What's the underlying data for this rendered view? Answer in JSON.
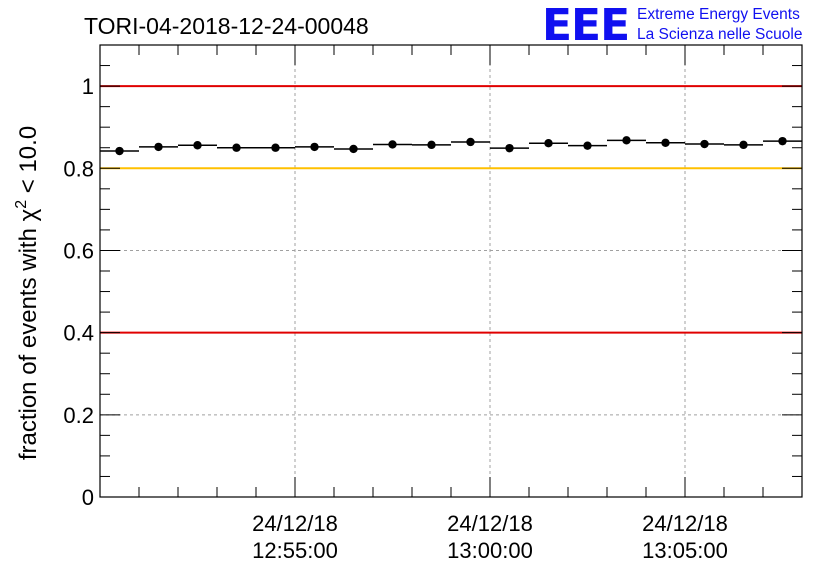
{
  "chart_data": {
    "type": "scatter",
    "title": "TORI-04-2018-12-24-00048",
    "xlabel": "",
    "ylabel_parts": {
      "prefix": "fraction of events with ",
      "symbol": "χ",
      "superscript": "2",
      "suffix": " < 10.0"
    },
    "ylim": [
      0,
      1.1
    ],
    "yticks": [
      0,
      0.2,
      0.4,
      0.6,
      0.8,
      1
    ],
    "ytick_labels": [
      "0",
      "0.2",
      "0.4",
      "0.6",
      "0.8",
      "1"
    ],
    "xlim_minutes": [
      0,
      18
    ],
    "xticks_minutes": [
      5,
      10,
      15
    ],
    "xtick_labels": [
      {
        "date": "24/12/18",
        "time": "12:55:00"
      },
      {
        "date": "24/12/18",
        "time": "13:00:00"
      },
      {
        "date": "24/12/18",
        "time": "13:05:00"
      }
    ],
    "grid": true,
    "series": [
      {
        "name": "fraction",
        "x_minutes": [
          0.5,
          1.5,
          2.5,
          3.5,
          4.5,
          5.5,
          6.5,
          7.5,
          8.5,
          9.5,
          10.5,
          11.5,
          12.5,
          13.5,
          14.5,
          15.5,
          16.5,
          17.5
        ],
        "values": [
          0.842,
          0.852,
          0.856,
          0.85,
          0.85,
          0.852,
          0.847,
          0.858,
          0.857,
          0.864,
          0.849,
          0.861,
          0.855,
          0.868,
          0.862,
          0.859,
          0.857,
          0.866
        ],
        "x_half_width": 0.5
      }
    ],
    "reference_lines": [
      {
        "y": 1.0,
        "color": "#e00000"
      },
      {
        "y": 0.8,
        "color": "#ffc000"
      },
      {
        "y": 0.4,
        "color": "#e00000"
      }
    ]
  },
  "logo": {
    "mark": "EEE",
    "line1": "Extreme Energy Events",
    "line2": "La Scienza nelle Scuole",
    "color": "#1010f0"
  }
}
